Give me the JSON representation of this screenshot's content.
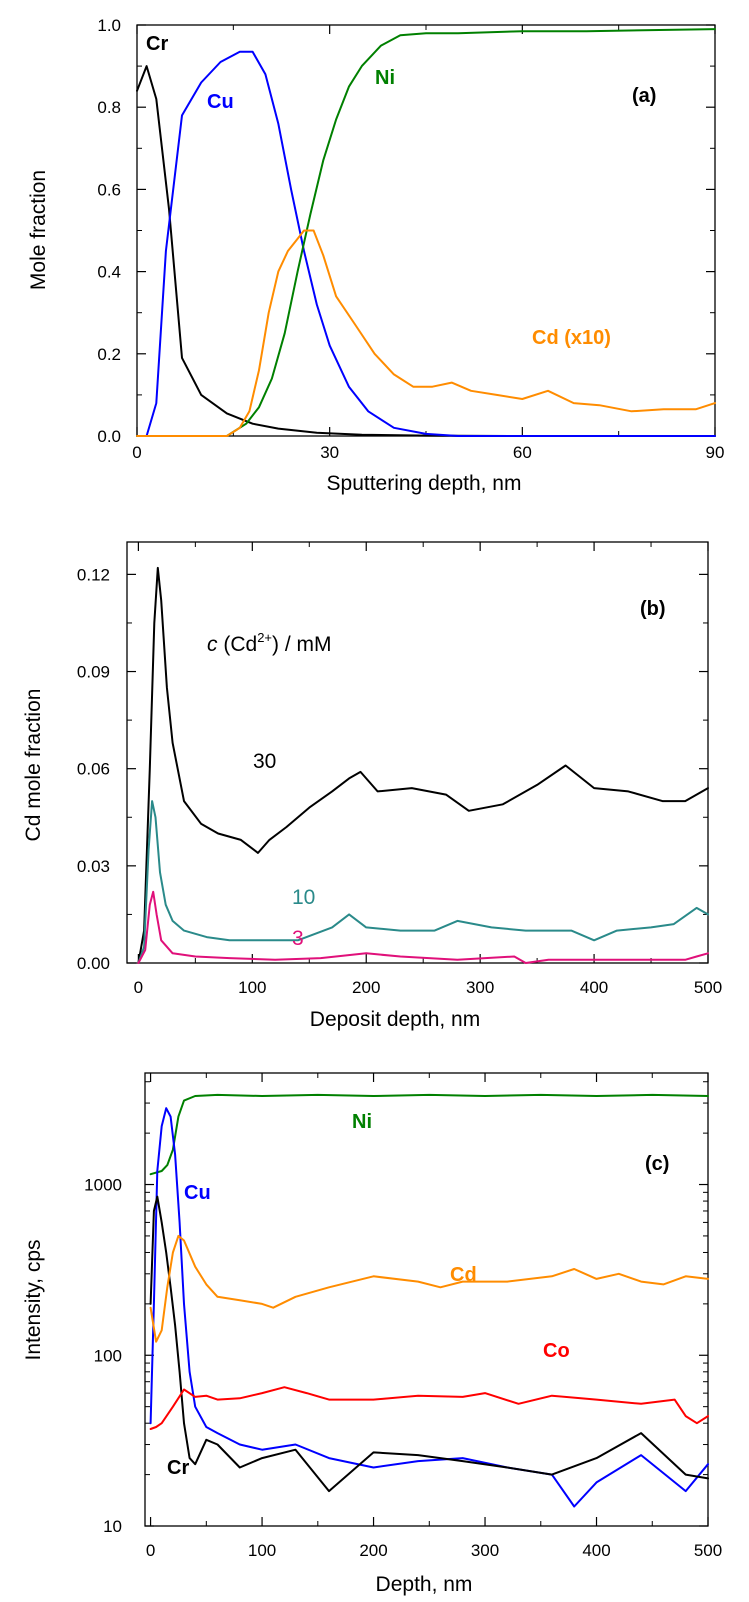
{
  "chart_data": [
    {
      "panel": "(a)",
      "type": "line",
      "xlabel": "Sputtering depth, nm",
      "ylabel": "Mole fraction",
      "xlim": [
        0,
        90
      ],
      "ylim": [
        0,
        1.0
      ],
      "xticks": [
        "0",
        "30",
        "60",
        "90"
      ],
      "yticks": [
        "0.0",
        "0.2",
        "0.4",
        "0.6",
        "0.8",
        "1.0"
      ],
      "grid": false,
      "series": [
        {
          "name": "Cr",
          "color": "#000000",
          "x": [
            0,
            1.5,
            3,
            5,
            7,
            10,
            14,
            18,
            22,
            28,
            35,
            45,
            60,
            90
          ],
          "y": [
            0.84,
            0.9,
            0.82,
            0.55,
            0.19,
            0.1,
            0.055,
            0.03,
            0.018,
            0.008,
            0.003,
            0.001,
            0,
            0
          ]
        },
        {
          "name": "Cu",
          "color": "#0000ff",
          "x": [
            0,
            1.5,
            3,
            4.5,
            7,
            10,
            13,
            16,
            18,
            20,
            22,
            24,
            26,
            28,
            30,
            33,
            36,
            40,
            45,
            50,
            60,
            90
          ],
          "y": [
            0,
            0,
            0.08,
            0.45,
            0.78,
            0.86,
            0.91,
            0.935,
            0.935,
            0.88,
            0.76,
            0.6,
            0.45,
            0.32,
            0.22,
            0.12,
            0.06,
            0.02,
            0.005,
            0,
            0,
            0
          ]
        },
        {
          "name": "Ni",
          "color": "#008000",
          "x": [
            0,
            14,
            15,
            17,
            19,
            21,
            23,
            25,
            27,
            29,
            31,
            33,
            35,
            38,
            41,
            45,
            50,
            60,
            70,
            90
          ],
          "y": [
            0,
            0,
            0.01,
            0.03,
            0.07,
            0.14,
            0.25,
            0.4,
            0.54,
            0.67,
            0.77,
            0.85,
            0.9,
            0.95,
            0.975,
            0.98,
            0.98,
            0.985,
            0.985,
            0.99
          ]
        },
        {
          "name": "Cd (x10)",
          "color": "#ff8c00",
          "x": [
            0,
            14,
            16,
            17.5,
            19,
            20.5,
            22,
            23.5,
            25,
            26,
            27.5,
            29,
            31,
            34,
            37,
            40,
            43,
            46,
            49,
            52,
            56,
            60,
            64,
            68,
            72,
            77,
            82,
            87,
            90
          ],
          "y": [
            0,
            0,
            0.02,
            0.06,
            0.16,
            0.3,
            0.4,
            0.45,
            0.48,
            0.5,
            0.5,
            0.44,
            0.34,
            0.27,
            0.2,
            0.15,
            0.12,
            0.12,
            0.13,
            0.11,
            0.1,
            0.09,
            0.11,
            0.08,
            0.075,
            0.06,
            0.065,
            0.065,
            0.08
          ]
        }
      ]
    },
    {
      "panel": "(b)",
      "type": "line",
      "xlabel": "Deposit depth, nm",
      "ylabel": "Cd mole fraction",
      "xlim": [
        -10,
        500
      ],
      "ylim": [
        0,
        0.13
      ],
      "xticks": [
        "0",
        "100",
        "200",
        "300",
        "400",
        "500"
      ],
      "yticks": [
        "0.00",
        "0.03",
        "0.06",
        "0.09",
        "0.12"
      ],
      "grid": false,
      "legend_title": {
        "italic": "c",
        "rest": " (Cd",
        "sup": "2+",
        "end": ") / mM"
      },
      "series": [
        {
          "name": "30",
          "color": "#000000",
          "x": [
            0,
            5,
            10,
            14,
            17,
            20,
            25,
            30,
            40,
            55,
            70,
            90,
            105,
            115,
            130,
            150,
            170,
            185,
            195,
            210,
            240,
            270,
            290,
            320,
            350,
            375,
            400,
            430,
            460,
            480,
            500
          ],
          "y": [
            0,
            0.01,
            0.06,
            0.105,
            0.122,
            0.112,
            0.085,
            0.068,
            0.05,
            0.043,
            0.04,
            0.038,
            0.034,
            0.038,
            0.042,
            0.048,
            0.053,
            0.057,
            0.059,
            0.053,
            0.054,
            0.052,
            0.047,
            0.049,
            0.055,
            0.061,
            0.054,
            0.053,
            0.05,
            0.05,
            0.054
          ]
        },
        {
          "name": "10",
          "color": "#2a8a8a",
          "x": [
            0,
            5,
            9,
            12,
            15,
            19,
            24,
            30,
            40,
            60,
            80,
            100,
            140,
            170,
            185,
            200,
            230,
            260,
            280,
            310,
            340,
            380,
            400,
            420,
            450,
            470,
            490,
            500
          ],
          "y": [
            0,
            0.005,
            0.035,
            0.05,
            0.045,
            0.028,
            0.018,
            0.013,
            0.01,
            0.008,
            0.007,
            0.007,
            0.007,
            0.011,
            0.015,
            0.011,
            0.01,
            0.01,
            0.013,
            0.011,
            0.01,
            0.01,
            0.007,
            0.01,
            0.011,
            0.012,
            0.017,
            0.015
          ]
        },
        {
          "name": "3",
          "color": "#e0107a",
          "x": [
            0,
            6,
            10,
            13,
            16,
            20,
            30,
            50,
            80,
            120,
            160,
            200,
            230,
            280,
            330,
            340,
            360,
            400,
            450,
            480,
            490,
            500
          ],
          "y": [
            0,
            0.004,
            0.018,
            0.022,
            0.015,
            0.007,
            0.003,
            0.002,
            0.0015,
            0.001,
            0.0015,
            0.003,
            0.002,
            0.001,
            0.002,
            0.0,
            0.001,
            0.001,
            0.001,
            0.001,
            0.002,
            0.003
          ]
        }
      ]
    },
    {
      "panel": "(c)",
      "type": "line",
      "xlabel": "Depth, nm",
      "ylabel": "Intensity, cps",
      "xlim": [
        -5,
        500
      ],
      "ylim": [
        10,
        4500
      ],
      "yscale": "log",
      "xticks": [
        "0",
        "100",
        "200",
        "300",
        "400",
        "500"
      ],
      "yticks": [
        "10",
        "100",
        "1000"
      ],
      "grid": false,
      "series": [
        {
          "name": "Ni",
          "color": "#008000",
          "x": [
            0,
            10,
            15,
            20,
            25,
            30,
            40,
            60,
            100,
            150,
            200,
            250,
            300,
            350,
            400,
            450,
            500
          ],
          "y": [
            1150,
            1200,
            1300,
            1600,
            2500,
            3100,
            3300,
            3350,
            3300,
            3350,
            3300,
            3350,
            3300,
            3350,
            3300,
            3350,
            3300
          ]
        },
        {
          "name": "Cu",
          "color": "#0000ff",
          "x": [
            0,
            3,
            6,
            10,
            14,
            18,
            22,
            26,
            30,
            35,
            40,
            50,
            60,
            80,
            100,
            130,
            160,
            200,
            240,
            280,
            320,
            360,
            380,
            400,
            440,
            480,
            500
          ],
          "y": [
            40,
            200,
            1200,
            2200,
            2800,
            2500,
            1500,
            600,
            200,
            80,
            50,
            38,
            35,
            30,
            28,
            30,
            25,
            22,
            24,
            25,
            22,
            20,
            13,
            18,
            26,
            16,
            23
          ]
        },
        {
          "name": "Cr",
          "color": "#000000",
          "x": [
            0,
            3,
            6,
            10,
            14,
            18,
            22,
            26,
            30,
            35,
            40,
            50,
            60,
            80,
            100,
            130,
            160,
            200,
            240,
            280,
            320,
            360,
            400,
            440,
            480,
            500
          ],
          "y": [
            200,
            700,
            850,
            600,
            400,
            250,
            150,
            80,
            40,
            25,
            23,
            32,
            30,
            22,
            25,
            28,
            16,
            27,
            26,
            24,
            22,
            20,
            25,
            35,
            20,
            19
          ]
        },
        {
          "name": "Cd",
          "color": "#ff8c00",
          "x": [
            0,
            5,
            10,
            15,
            20,
            25,
            30,
            40,
            50,
            60,
            80,
            100,
            110,
            130,
            160,
            200,
            240,
            260,
            280,
            320,
            360,
            380,
            400,
            420,
            440,
            460,
            480,
            500
          ],
          "y": [
            190,
            120,
            140,
            250,
            400,
            500,
            470,
            330,
            260,
            220,
            210,
            200,
            190,
            220,
            250,
            290,
            270,
            250,
            270,
            270,
            290,
            320,
            280,
            300,
            270,
            260,
            290,
            280
          ]
        },
        {
          "name": "Co",
          "color": "#ff0000",
          "x": [
            0,
            5,
            10,
            20,
            30,
            40,
            50,
            60,
            80,
            100,
            120,
            140,
            160,
            200,
            240,
            280,
            300,
            330,
            360,
            400,
            440,
            470,
            480,
            490,
            500
          ],
          "y": [
            37,
            38,
            40,
            50,
            63,
            57,
            58,
            55,
            56,
            60,
            65,
            60,
            55,
            55,
            58,
            57,
            60,
            52,
            58,
            55,
            52,
            55,
            44,
            40,
            44
          ]
        }
      ]
    }
  ]
}
